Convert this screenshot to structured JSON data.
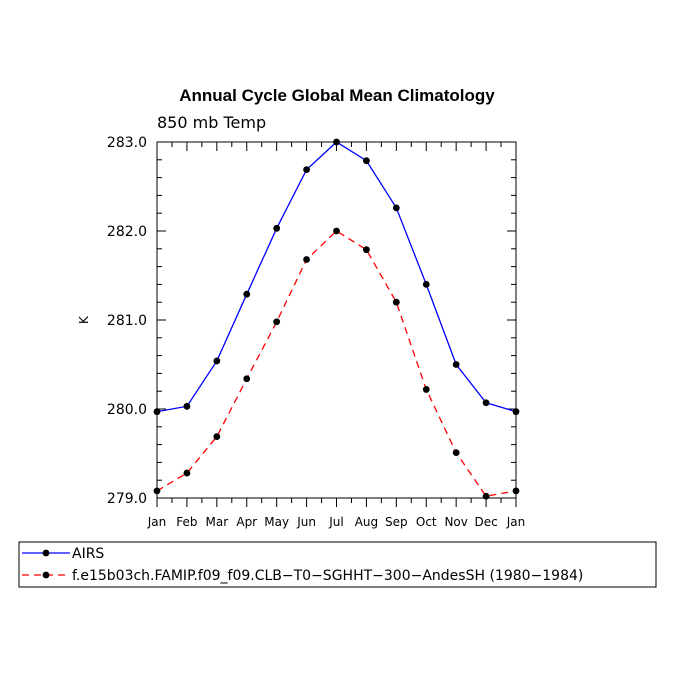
{
  "chart_data": {
    "type": "line",
    "title": "Annual Cycle Global Mean Climatology",
    "subtitle": "850 mb Temp",
    "xlabel": "",
    "ylabel": "K",
    "categories": [
      "Jan",
      "Feb",
      "Mar",
      "Apr",
      "May",
      "Jun",
      "Jul",
      "Aug",
      "Sep",
      "Oct",
      "Nov",
      "Dec",
      "Jan"
    ],
    "ylim": [
      279.0,
      283.0
    ],
    "yticks": [
      "279.0",
      "280.0",
      "281.0",
      "282.0",
      "283.0"
    ],
    "grid": false,
    "legend_position": "bottom",
    "series": [
      {
        "name": "AIRS",
        "color": "#0000ff",
        "dash": "solid",
        "values": [
          279.97,
          280.03,
          280.54,
          281.29,
          282.03,
          282.69,
          283.0,
          282.79,
          282.26,
          281.4,
          280.5,
          280.07,
          279.97
        ]
      },
      {
        "name": "f.e15b03ch.FAMIP.f09_f09.CLB−T0−SGHHT−300−AndesSH (1980−1984)",
        "color": "#ff0000",
        "dash": "dashed",
        "values": [
          279.08,
          279.28,
          279.69,
          280.34,
          280.98,
          281.68,
          282.0,
          281.79,
          281.2,
          280.22,
          279.51,
          279.02,
          279.08
        ]
      }
    ]
  }
}
